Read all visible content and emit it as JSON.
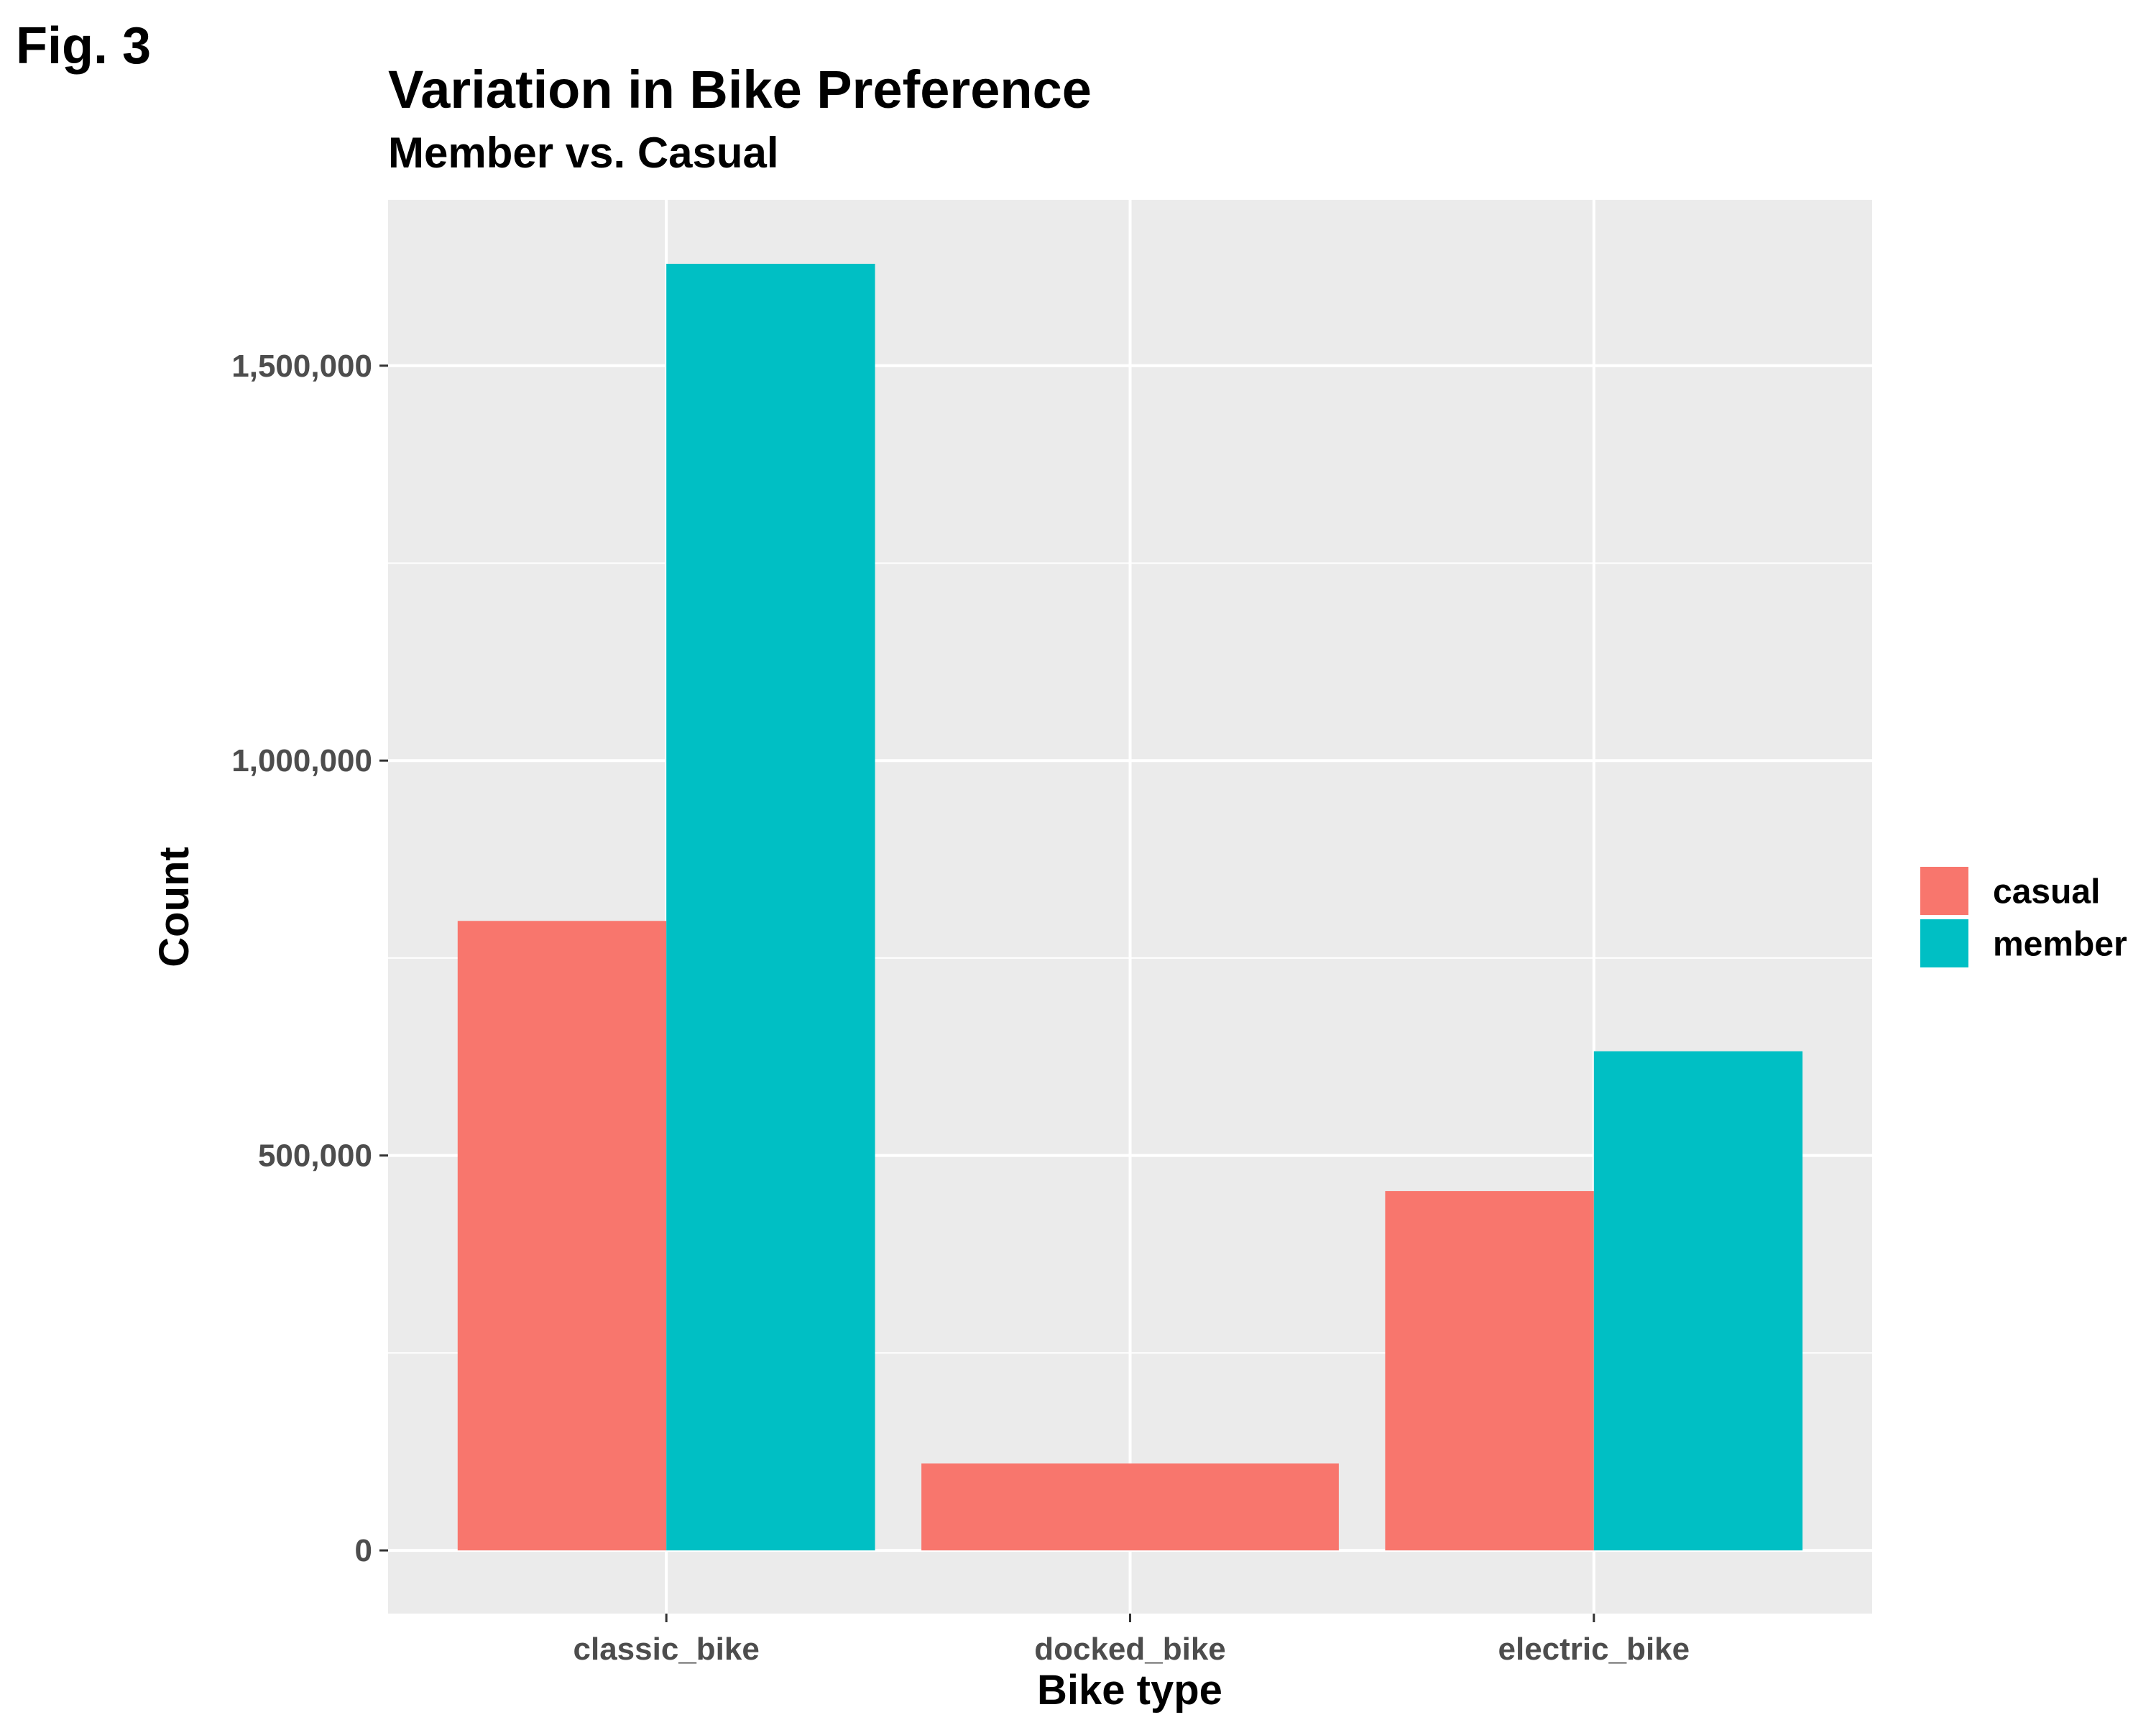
{
  "figure_label": "Fig. 3",
  "chart_data": {
    "type": "bar",
    "title": "Variation in Bike Preference",
    "subtitle": "Member vs. Casual",
    "xlabel": "Bike type",
    "ylabel": "Count",
    "categories": [
      "classic_bike",
      "docked_bike",
      "electric_bike"
    ],
    "series": [
      {
        "name": "casual",
        "color": "#F8766D",
        "values": [
          797000,
          110000,
          455000
        ]
      },
      {
        "name": "member",
        "color": "#00BFC4",
        "values": [
          1629000,
          null,
          632000
        ]
      }
    ],
    "ylim": [
      -80000,
      1710000
    ],
    "yticks": [
      0,
      500000,
      1000000,
      1500000
    ],
    "ytick_labels": [
      "0",
      "500,000",
      "1,000,000",
      "1,500,000"
    ],
    "legend_position": "right",
    "panel_background": "#EBEBEB",
    "grid": true
  }
}
